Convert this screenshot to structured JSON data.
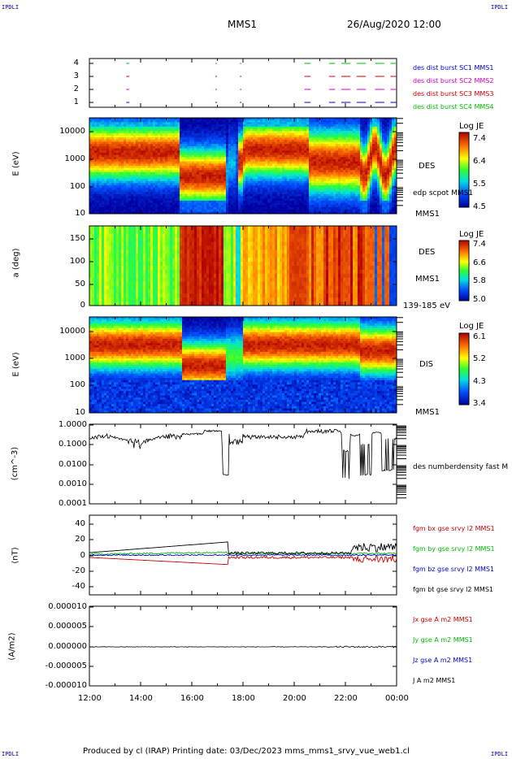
{
  "corners": {
    "tl": "IPDLI",
    "tr": "IPDLI",
    "bl": "IPDLI",
    "br": "IPDLI"
  },
  "header": {
    "spacecraft": "MMS1",
    "date": "26/Aug/2020 12:00"
  },
  "footer": "Produced by cl (IRAP)   Printing date: 03/Dec/2023   mms_mms1_srvy_vue_web1.cl",
  "x_axis": {
    "ticks": [
      "12:00",
      "14:00",
      "16:00",
      "18:00",
      "20:00",
      "22:00",
      "00:00"
    ]
  },
  "panels": {
    "burst": {
      "yticks": [
        "4",
        "3",
        "2",
        "1"
      ],
      "legend": [
        {
          "text": "des dist burst SC1 MMS1",
          "color": "#0000cc"
        },
        {
          "text": "des dist burst SC2 MMS2",
          "color": "#cc00cc"
        },
        {
          "text": "des dist burst SC3 MMS3",
          "color": "#cc0000"
        },
        {
          "text": "des dist burst SC4 MMS4",
          "color": "#00bb00"
        }
      ]
    },
    "des_energy": {
      "ylabel": "E (eV)",
      "yticks": [
        "10000",
        "1000",
        "100",
        "10"
      ],
      "label1": "DES",
      "label2": "edp scpot MMS1",
      "label3": "MMS1",
      "cbar": {
        "title": "Log JE",
        "ticks": [
          "7.4",
          "6.4",
          "5.5",
          "4.5"
        ]
      }
    },
    "des_pitch": {
      "ylabel": "a (deg)",
      "yticks": [
        "150",
        "100",
        "50",
        "0"
      ],
      "label1": "DES",
      "label2": "MMS1",
      "label3": "139-185 eV",
      "cbar": {
        "title": "Log JE",
        "ticks": [
          "7.4",
          "6.6",
          "5.8",
          "5.0"
        ]
      }
    },
    "dis_energy": {
      "ylabel": "E (eV)",
      "yticks": [
        "10000",
        "1000",
        "100",
        "10"
      ],
      "label1": "DIS",
      "label2": "MMS1",
      "cbar": {
        "title": "Log JE",
        "ticks": [
          "6.1",
          "5.2",
          "4.3",
          "3.4"
        ]
      }
    },
    "density": {
      "ylabel": "(cm^-3)",
      "yticks": [
        "1.0000",
        "0.1000",
        "0.0100",
        "0.0010",
        "0.0001"
      ],
      "label": "des numberdensity fast M"
    },
    "bfield": {
      "ylabel": "(nT)",
      "yticks": [
        "40",
        "20",
        "0",
        "-20",
        "-40"
      ],
      "legend": [
        {
          "text": "fgm bx gse srvy l2 MMS1",
          "color": "#cc0000"
        },
        {
          "text": "fgm by gse srvy l2 MMS1",
          "color": "#00bb00"
        },
        {
          "text": "fgm bz gse srvy l2 MMS1",
          "color": "#0000cc"
        },
        {
          "text": "fgm bt gse srvy l2 MMS1",
          "color": "#000000"
        }
      ]
    },
    "current": {
      "ylabel": "(A/m2)",
      "yticks": [
        "0.000010",
        "0.000005",
        "0.000000",
        "-0.000005",
        "-0.000010"
      ],
      "legend": [
        {
          "text": "Jx gse A m2 MMS1",
          "color": "#cc0000"
        },
        {
          "text": "Jy gse A m2 MMS1",
          "color": "#00bb00"
        },
        {
          "text": "Jz gse A m2 MMS1",
          "color": "#0000cc"
        },
        {
          "text": "J A m2 MMS1",
          "color": "#000000"
        }
      ]
    }
  },
  "chart_data": [
    {
      "type": "line",
      "title": "des dist burst",
      "x": [
        "12:00",
        "14:00",
        "16:00",
        "18:00",
        "20:00",
        "22:00",
        "00:00"
      ],
      "ylim": [
        0.5,
        4.5
      ]
    },
    {
      "type": "heatmap",
      "ylabel": "E (eV)",
      "ylim": [
        10,
        30000
      ],
      "zlabel": "Log JE",
      "zlim": [
        4.5,
        7.4
      ]
    },
    {
      "type": "heatmap",
      "ylabel": "a (deg)",
      "ylim": [
        0,
        180
      ],
      "zlabel": "Log JE",
      "zlim": [
        5.0,
        7.4
      ]
    },
    {
      "type": "heatmap",
      "ylabel": "E (eV)",
      "ylim": [
        10,
        30000
      ],
      "zlabel": "Log JE",
      "zlim": [
        3.4,
        6.1
      ]
    },
    {
      "type": "line",
      "ylabel": "(cm^-3)",
      "ylim": [
        0.0001,
        1.0
      ],
      "log": true,
      "x": [
        "12:00",
        "13:00",
        "14:00",
        "15:00",
        "16:00",
        "17:00",
        "17:20",
        "18:00",
        "19:00",
        "20:00",
        "21:00",
        "22:00",
        "22:40",
        "23:00",
        "23:40",
        "00:00"
      ],
      "series": [
        {
          "name": "des numberdensity fast M",
          "values": [
            0.3,
            0.2,
            0.25,
            0.3,
            0.5,
            0.4,
            0.002,
            0.2,
            0.25,
            0.3,
            0.5,
            0.3,
            0.003,
            0.2,
            0.004,
            0.3
          ]
        }
      ]
    },
    {
      "type": "line",
      "ylabel": "(nT)",
      "ylim": [
        -50,
        50
      ],
      "x": [
        "12:00",
        "14:00",
        "16:00",
        "17:00",
        "18:00",
        "20:00",
        "22:00",
        "23:00",
        "00:00"
      ],
      "series": [
        {
          "name": "fgm bx gse srvy l2 MMS1",
          "values": [
            -2,
            -6,
            -14,
            -20,
            -2,
            -1,
            -3,
            -5,
            -4
          ]
        },
        {
          "name": "fgm by gse srvy l2 MMS1",
          "values": [
            1,
            2,
            3,
            5,
            1,
            1,
            2,
            3,
            2
          ]
        },
        {
          "name": "fgm bz gse srvy l2 MMS1",
          "values": [
            2,
            2,
            2,
            2,
            1,
            1,
            1,
            1,
            1
          ]
        },
        {
          "name": "fgm bt gse srvy l2 MMS1",
          "values": [
            5,
            8,
            14,
            20,
            3,
            2,
            5,
            8,
            6
          ]
        }
      ]
    },
    {
      "type": "line",
      "ylabel": "(A/m2)",
      "ylim": [
        -1e-05,
        1e-05
      ],
      "x": [
        "12:00",
        "00:00"
      ],
      "series": [
        {
          "name": "J A m2 MMS1",
          "values": [
            0,
            0
          ]
        }
      ]
    }
  ]
}
